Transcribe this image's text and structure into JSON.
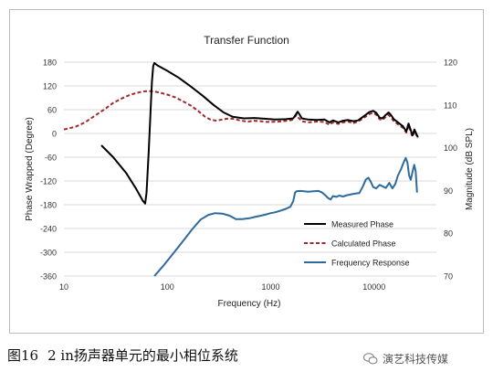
{
  "caption": {
    "fig_label": "图16",
    "text": "2 in扬声器单元的最小相位系统"
  },
  "watermark": {
    "icon": "wechat-icon",
    "text": "演艺科技传媒"
  },
  "colors": {
    "measured_phase": "#000000",
    "calculated_phase": "#9e2a2a",
    "frequency_response": "#2e6a9e",
    "grid": "#d9d9d9"
  },
  "chart_data": {
    "type": "line",
    "title": "Transfer Function",
    "xlabel": "Frequency (Hz)",
    "ylabel_left": "Phase Wrapped (Degree)",
    "ylabel_right": "Magnitude (dB SPL)",
    "xscale": "log",
    "xlim": [
      10,
      40000
    ],
    "ylim_left": [
      -360,
      180
    ],
    "ylim_right": [
      70,
      120
    ],
    "x_ticks": [
      10,
      100,
      1000,
      10000
    ],
    "x_tick_labels": [
      "10",
      "100",
      "1000",
      "10000"
    ],
    "y_left_ticks": [
      180,
      120,
      60,
      0,
      -60,
      -120,
      -180,
      -240,
      -300,
      -360
    ],
    "y_left_tick_labels": [
      "180",
      "120",
      "60",
      "0",
      "-60",
      "-120",
      "-180",
      "-240",
      "-300",
      "-360"
    ],
    "y_right_ticks": [
      120,
      110,
      100,
      90,
      80,
      70
    ],
    "y_right_tick_labels": [
      "120",
      "110",
      "100",
      "90",
      "80",
      "70"
    ],
    "grid": "horizontal",
    "legend_position": "lower-right",
    "series": [
      {
        "name": "Measured Phase",
        "axis": "left",
        "style": "solid",
        "points": [
          [
            23,
            -30
          ],
          [
            30,
            -60
          ],
          [
            40,
            -100
          ],
          [
            50,
            -140
          ],
          [
            58,
            -170
          ],
          [
            61,
            -177
          ],
          [
            63,
            -150
          ],
          [
            66,
            -50
          ],
          [
            69,
            60
          ],
          [
            71,
            130
          ],
          [
            73,
            170
          ],
          [
            75,
            178
          ],
          [
            80,
            172
          ],
          [
            100,
            158
          ],
          [
            130,
            140
          ],
          [
            170,
            118
          ],
          [
            220,
            95
          ],
          [
            280,
            72
          ],
          [
            350,
            53
          ],
          [
            430,
            42
          ],
          [
            550,
            38
          ],
          [
            700,
            39
          ],
          [
            900,
            37
          ],
          [
            1100,
            35
          ],
          [
            1400,
            36
          ],
          [
            1650,
            38
          ],
          [
            1750,
            48
          ],
          [
            1820,
            55
          ],
          [
            1900,
            48
          ],
          [
            2000,
            38
          ],
          [
            2300,
            35
          ],
          [
            2800,
            34
          ],
          [
            3300,
            35
          ],
          [
            3700,
            28
          ],
          [
            4000,
            33
          ],
          [
            4500,
            28
          ],
          [
            5000,
            32
          ],
          [
            5600,
            34
          ],
          [
            6300,
            31
          ],
          [
            7000,
            33
          ],
          [
            8000,
            44
          ],
          [
            9000,
            54
          ],
          [
            9800,
            57
          ],
          [
            10500,
            52
          ],
          [
            11300,
            40
          ],
          [
            12000,
            38
          ],
          [
            13000,
            47
          ],
          [
            13800,
            53
          ],
          [
            14500,
            47
          ],
          [
            15500,
            36
          ],
          [
            17000,
            28
          ],
          [
            19000,
            18
          ],
          [
            20500,
            5
          ],
          [
            21500,
            25
          ],
          [
            22500,
            10
          ],
          [
            23500,
            -5
          ],
          [
            24500,
            10
          ],
          [
            25500,
            0
          ],
          [
            26500,
            -10
          ]
        ]
      },
      {
        "name": "Calculated Phase",
        "axis": "left",
        "style": "dashed",
        "points": [
          [
            10,
            10
          ],
          [
            13,
            17
          ],
          [
            16,
            28
          ],
          [
            20,
            45
          ],
          [
            25,
            62
          ],
          [
            30,
            77
          ],
          [
            36,
            88
          ],
          [
            43,
            97
          ],
          [
            50,
            102
          ],
          [
            58,
            106
          ],
          [
            66,
            107
          ],
          [
            75,
            106
          ],
          [
            85,
            103
          ],
          [
            100,
            98
          ],
          [
            120,
            91
          ],
          [
            140,
            82
          ],
          [
            170,
            70
          ],
          [
            200,
            56
          ],
          [
            230,
            43
          ],
          [
            260,
            35
          ],
          [
            300,
            32
          ],
          [
            350,
            36
          ],
          [
            400,
            38
          ],
          [
            450,
            36
          ],
          [
            520,
            32
          ],
          [
            600,
            30
          ],
          [
            700,
            32
          ],
          [
            800,
            31
          ],
          [
            900,
            29
          ],
          [
            1000,
            29
          ],
          [
            1200,
            30
          ],
          [
            1450,
            32
          ],
          [
            1600,
            34
          ],
          [
            1700,
            42
          ],
          [
            1780,
            46
          ],
          [
            1850,
            40
          ],
          [
            2000,
            31
          ],
          [
            2300,
            28
          ],
          [
            2800,
            30
          ],
          [
            3300,
            29
          ],
          [
            3700,
            22
          ],
          [
            4000,
            28
          ],
          [
            4500,
            24
          ],
          [
            5000,
            28
          ],
          [
            5600,
            30
          ],
          [
            6300,
            26
          ],
          [
            7000,
            30
          ],
          [
            8000,
            40
          ],
          [
            9000,
            49
          ],
          [
            9800,
            52
          ],
          [
            10500,
            47
          ],
          [
            11300,
            36
          ],
          [
            12000,
            34
          ],
          [
            13000,
            42
          ],
          [
            13800,
            47
          ],
          [
            14500,
            41
          ],
          [
            15500,
            31
          ],
          [
            17000,
            23
          ],
          [
            19000,
            14
          ],
          [
            20500,
            2
          ],
          [
            21500,
            20
          ],
          [
            22500,
            6
          ],
          [
            23500,
            -8
          ],
          [
            24500,
            6
          ],
          [
            25500,
            -3
          ],
          [
            26500,
            -12
          ]
        ]
      },
      {
        "name": "Frequency Response",
        "axis": "right",
        "style": "solid",
        "points": [
          [
            75,
            70
          ],
          [
            90,
            72.2
          ],
          [
            110,
            74.8
          ],
          [
            140,
            78
          ],
          [
            175,
            81
          ],
          [
            210,
            83.2
          ],
          [
            250,
            84.3
          ],
          [
            290,
            84.7
          ],
          [
            340,
            84.6
          ],
          [
            400,
            84.1
          ],
          [
            460,
            83.3
          ],
          [
            530,
            83.3
          ],
          [
            620,
            83.5
          ],
          [
            700,
            83.8
          ],
          [
            800,
            84.1
          ],
          [
            900,
            84.4
          ],
          [
            1000,
            84.7
          ],
          [
            1100,
            84.9
          ],
          [
            1250,
            85.3
          ],
          [
            1400,
            85.7
          ],
          [
            1550,
            86.2
          ],
          [
            1650,
            87.5
          ],
          [
            1720,
            89.5
          ],
          [
            1780,
            89.8
          ],
          [
            1900,
            89.9
          ],
          [
            2100,
            89.8
          ],
          [
            2300,
            89.7
          ],
          [
            2600,
            89.8
          ],
          [
            2900,
            89.9
          ],
          [
            3150,
            89.5
          ],
          [
            3400,
            88.8
          ],
          [
            3600,
            88.2
          ],
          [
            3800,
            87.9
          ],
          [
            4000,
            88.7
          ],
          [
            4300,
            88.5
          ],
          [
            4600,
            88.8
          ],
          [
            5000,
            88.6
          ],
          [
            5500,
            88.9
          ],
          [
            6000,
            89.1
          ],
          [
            6600,
            89.3
          ],
          [
            7200,
            89.4
          ],
          [
            7800,
            91.0
          ],
          [
            8300,
            92.5
          ],
          [
            8800,
            93.0
          ],
          [
            9300,
            92.0
          ],
          [
            9800,
            90.8
          ],
          [
            10500,
            90.5
          ],
          [
            11300,
            91.3
          ],
          [
            12000,
            91.0
          ],
          [
            13000,
            90.6
          ],
          [
            14000,
            91.8
          ],
          [
            15000,
            90.5
          ],
          [
            16000,
            91.5
          ],
          [
            17000,
            93.5
          ],
          [
            18200,
            95.0
          ],
          [
            19300,
            96.6
          ],
          [
            20200,
            97.6
          ],
          [
            21000,
            96.5
          ],
          [
            21800,
            93.5
          ],
          [
            22600,
            92.5
          ],
          [
            23600,
            94.5
          ],
          [
            24400,
            96.0
          ],
          [
            25200,
            94.5
          ],
          [
            26000,
            89.5
          ]
        ]
      }
    ]
  }
}
